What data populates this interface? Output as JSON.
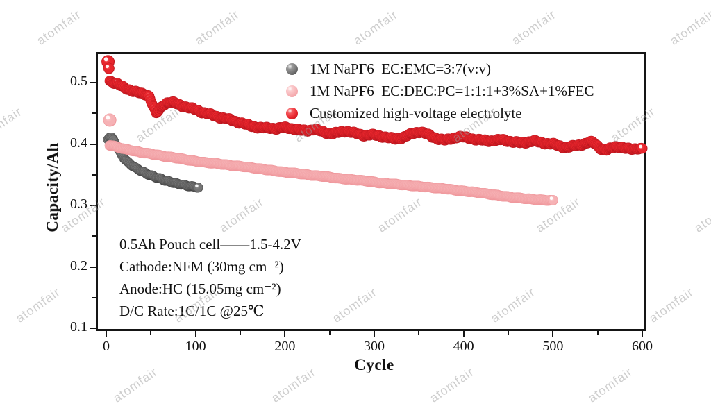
{
  "watermark": {
    "text": "atomfair",
    "color": "#9e9e9e"
  },
  "figure": {
    "background": "#ffffff",
    "frame_color": "#151515"
  },
  "annotation": {
    "lines": [
      "0.5Ah Pouch cell——1.5-4.2V",
      "Cathode:NFM (30mg cm⁻²)",
      "Anode:HC (15.05mg cm⁻²)",
      "D/C Rate:1C/1C @25℃"
    ]
  },
  "chart_data": {
    "type": "scatter",
    "title": "",
    "xlabel": "Cycle",
    "ylabel": "Capacity/Ah",
    "xlim": [
      -11,
      604
    ],
    "ylim": [
      0.098,
      0.552
    ],
    "xticks": [
      0,
      100,
      200,
      300,
      400,
      500,
      600
    ],
    "yticks": [
      0.1,
      0.2,
      0.3,
      0.4,
      0.5
    ],
    "x_minor_step": 50,
    "y_minor_step": 0.05,
    "grid": false,
    "legend_position": "top-center-inside",
    "marker": "glossy-ball",
    "series": [
      {
        "name": "1M NaPF6  EC:EMC=3:7(v:v)",
        "colors": {
          "light": "#9a9a9a",
          "main": "#757575",
          "dark": "#3a3a3a"
        },
        "radius": 7,
        "head_points": [],
        "points": [
          [
            2,
            0.408
          ],
          [
            4,
            0.411
          ],
          [
            6,
            0.41
          ],
          [
            8,
            0.406
          ],
          [
            10,
            0.401
          ],
          [
            12,
            0.396
          ],
          [
            14,
            0.391
          ],
          [
            16,
            0.386
          ],
          [
            18,
            0.381
          ],
          [
            20,
            0.377
          ],
          [
            23,
            0.372
          ],
          [
            26,
            0.368
          ],
          [
            30,
            0.364
          ],
          [
            34,
            0.36
          ],
          [
            38,
            0.357
          ],
          [
            42,
            0.354
          ],
          [
            46,
            0.351
          ],
          [
            50,
            0.349
          ],
          [
            55,
            0.346
          ],
          [
            60,
            0.344
          ],
          [
            65,
            0.341
          ],
          [
            70,
            0.339
          ],
          [
            75,
            0.337
          ],
          [
            80,
            0.335
          ],
          [
            85,
            0.334
          ],
          [
            90,
            0.332
          ],
          [
            95,
            0.331
          ],
          [
            100,
            0.33
          ],
          [
            103,
            0.329
          ]
        ]
      },
      {
        "name": "1M NaPF6  EC:DEC:PC=1:1:1+3%SA+1%FEC",
        "colors": {
          "light": "#fbcbcd",
          "main": "#f6b2b5",
          "dark": "#ee9297"
        },
        "radius": 7.5,
        "head_points": [
          [
            4,
            0.439
          ]
        ],
        "points": [
          [
            4,
            0.398
          ],
          [
            10,
            0.396
          ],
          [
            20,
            0.392
          ],
          [
            30,
            0.389
          ],
          [
            40,
            0.386
          ],
          [
            50,
            0.384
          ],
          [
            65,
            0.38
          ],
          [
            80,
            0.377
          ],
          [
            95,
            0.373
          ],
          [
            110,
            0.37
          ],
          [
            125,
            0.368
          ],
          [
            140,
            0.365
          ],
          [
            155,
            0.363
          ],
          [
            170,
            0.36
          ],
          [
            185,
            0.357
          ],
          [
            200,
            0.354
          ],
          [
            215,
            0.352
          ],
          [
            230,
            0.349
          ],
          [
            245,
            0.347
          ],
          [
            260,
            0.344
          ],
          [
            275,
            0.342
          ],
          [
            290,
            0.34
          ],
          [
            305,
            0.337
          ],
          [
            320,
            0.335
          ],
          [
            335,
            0.333
          ],
          [
            350,
            0.331
          ],
          [
            365,
            0.329
          ],
          [
            380,
            0.327
          ],
          [
            395,
            0.324
          ],
          [
            410,
            0.322
          ],
          [
            425,
            0.319
          ],
          [
            440,
            0.316
          ],
          [
            455,
            0.313
          ],
          [
            470,
            0.311
          ],
          [
            485,
            0.309
          ],
          [
            500,
            0.308
          ]
        ]
      },
      {
        "name": "Customized high-voltage electrolyte",
        "colors": {
          "light": "#f4575c",
          "main": "#e8262d",
          "dark": "#b2121a"
        },
        "radius": 7.5,
        "head_points": [
          [
            2,
            0.534
          ],
          [
            3,
            0.523
          ]
        ],
        "points": [
          [
            4,
            0.503
          ],
          [
            8,
            0.5
          ],
          [
            12,
            0.498
          ],
          [
            16,
            0.495
          ],
          [
            20,
            0.492
          ],
          [
            25,
            0.489
          ],
          [
            30,
            0.486
          ],
          [
            35,
            0.484
          ],
          [
            40,
            0.482
          ],
          [
            44,
            0.481
          ],
          [
            48,
            0.478
          ],
          [
            52,
            0.463
          ],
          [
            56,
            0.45
          ],
          [
            60,
            0.457
          ],
          [
            64,
            0.464
          ],
          [
            68,
            0.467
          ],
          [
            72,
            0.468
          ],
          [
            76,
            0.467
          ],
          [
            80,
            0.465
          ],
          [
            85,
            0.462
          ],
          [
            90,
            0.46
          ],
          [
            95,
            0.458
          ],
          [
            100,
            0.456
          ],
          [
            107,
            0.452
          ],
          [
            114,
            0.449
          ],
          [
            121,
            0.446
          ],
          [
            128,
            0.443
          ],
          [
            135,
            0.441
          ],
          [
            142,
            0.438
          ],
          [
            149,
            0.435
          ],
          [
            156,
            0.432
          ],
          [
            163,
            0.429
          ],
          [
            170,
            0.427
          ],
          [
            177,
            0.426
          ],
          [
            184,
            0.426
          ],
          [
            191,
            0.425
          ],
          [
            198,
            0.427
          ],
          [
            205,
            0.426
          ],
          [
            212,
            0.424
          ],
          [
            219,
            0.422
          ],
          [
            226,
            0.422
          ],
          [
            233,
            0.424
          ],
          [
            240,
            0.421
          ],
          [
            247,
            0.418
          ],
          [
            254,
            0.417
          ],
          [
            261,
            0.419
          ],
          [
            268,
            0.421
          ],
          [
            275,
            0.419
          ],
          [
            282,
            0.416
          ],
          [
            289,
            0.414
          ],
          [
            296,
            0.415
          ],
          [
            303,
            0.414
          ],
          [
            310,
            0.412
          ],
          [
            317,
            0.41
          ],
          [
            324,
            0.408
          ],
          [
            331,
            0.41
          ],
          [
            338,
            0.414
          ],
          [
            345,
            0.418
          ],
          [
            352,
            0.42
          ],
          [
            359,
            0.416
          ],
          [
            366,
            0.411
          ],
          [
            373,
            0.408
          ],
          [
            380,
            0.406
          ],
          [
            387,
            0.409
          ],
          [
            394,
            0.412
          ],
          [
            401,
            0.411
          ],
          [
            408,
            0.409
          ],
          [
            415,
            0.407
          ],
          [
            422,
            0.406
          ],
          [
            429,
            0.405
          ],
          [
            436,
            0.406
          ],
          [
            443,
            0.407
          ],
          [
            450,
            0.405
          ],
          [
            457,
            0.403
          ],
          [
            464,
            0.402
          ],
          [
            471,
            0.403
          ],
          [
            478,
            0.405
          ],
          [
            485,
            0.403
          ],
          [
            492,
            0.401
          ],
          [
            500,
            0.4
          ],
          [
            507,
            0.397
          ],
          [
            514,
            0.394
          ],
          [
            521,
            0.396
          ],
          [
            528,
            0.398
          ],
          [
            535,
            0.4
          ],
          [
            541,
            0.403
          ],
          [
            545,
            0.403
          ],
          [
            550,
            0.397
          ],
          [
            555,
            0.391
          ],
          [
            560,
            0.39
          ],
          [
            565,
            0.393
          ],
          [
            570,
            0.396
          ],
          [
            575,
            0.395
          ],
          [
            580,
            0.393
          ],
          [
            585,
            0.392
          ],
          [
            590,
            0.392
          ],
          [
            595,
            0.393
          ],
          [
            600,
            0.392
          ]
        ]
      }
    ]
  }
}
